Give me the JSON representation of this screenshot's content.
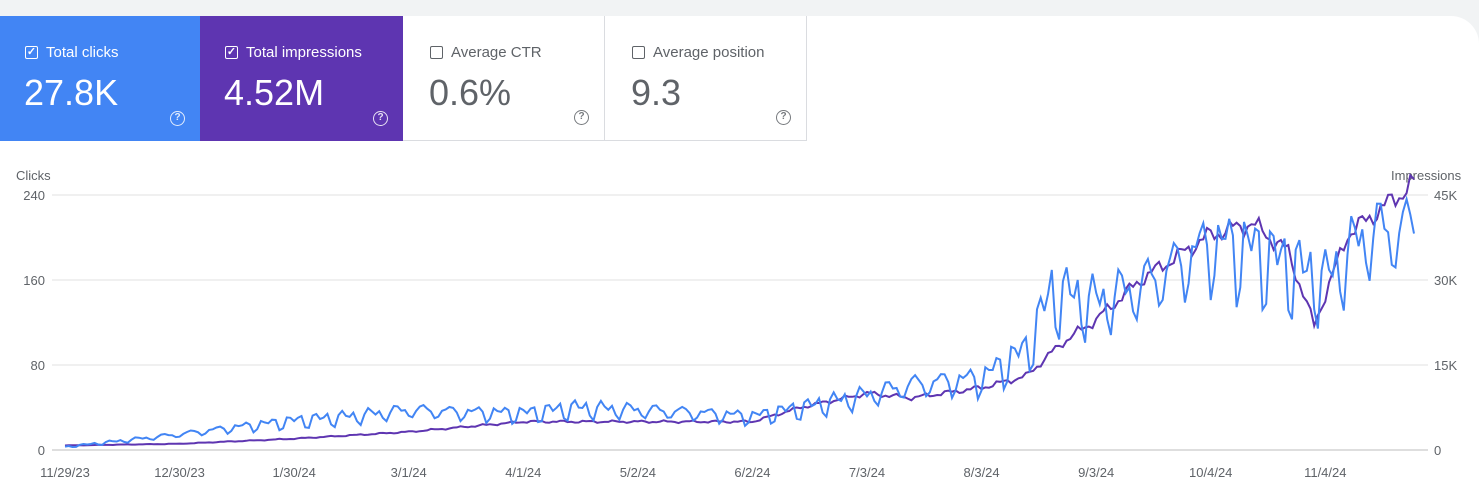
{
  "metrics": {
    "clicks": {
      "label": "Total clicks",
      "value": "27.8K",
      "checked": true
    },
    "impressions": {
      "label": "Total impressions",
      "value": "4.52M",
      "checked": true
    },
    "ctr": {
      "label": "Average CTR",
      "value": "0.6%",
      "checked": false
    },
    "position": {
      "label": "Average position",
      "value": "9.3",
      "checked": false
    },
    "help_glyph": "?",
    "check_glyph": "✓"
  },
  "colors": {
    "clicks": "#4285f4",
    "impressions": "#5e35b1",
    "grid": "#e0e0e0",
    "text": "#5f6368"
  },
  "chart_data": {
    "type": "line",
    "left_axis": {
      "title": "Clicks",
      "ticks": [
        "0",
        "80",
        "160",
        "240"
      ],
      "ylim": [
        0,
        240
      ]
    },
    "right_axis": {
      "title": "Impressions",
      "ticks": [
        "0",
        "15K",
        "30K",
        "45K"
      ],
      "ylim": [
        0,
        45000
      ]
    },
    "x_ticks": [
      "11/29/23",
      "12/30/23",
      "1/30/24",
      "3/1/24",
      "4/1/24",
      "5/2/24",
      "6/2/24",
      "7/3/24",
      "8/3/24",
      "9/3/24",
      "10/4/24",
      "11/4/24"
    ],
    "x_range": [
      "2023-11-29",
      "2024-11-28"
    ],
    "grid": true,
    "series": [
      {
        "name": "Total clicks",
        "axis": "left",
        "values": [
          {
            "date": "2023-11-29",
            "value": 3
          },
          {
            "date": "2023-12-15",
            "value": 9
          },
          {
            "date": "2023-12-30",
            "value": 15
          },
          {
            "date": "2024-01-15",
            "value": 22
          },
          {
            "date": "2024-01-30",
            "value": 28
          },
          {
            "date": "2024-02-15",
            "value": 32
          },
          {
            "date": "2024-03-01",
            "value": 38
          },
          {
            "date": "2024-03-15",
            "value": 36
          },
          {
            "date": "2024-04-01",
            "value": 35
          },
          {
            "date": "2024-04-15",
            "value": 40
          },
          {
            "date": "2024-05-02",
            "value": 38
          },
          {
            "date": "2024-05-15",
            "value": 36
          },
          {
            "date": "2024-06-02",
            "value": 32
          },
          {
            "date": "2024-06-15",
            "value": 40
          },
          {
            "date": "2024-07-03",
            "value": 52
          },
          {
            "date": "2024-07-15",
            "value": 62
          },
          {
            "date": "2024-08-03",
            "value": 68
          },
          {
            "date": "2024-08-15",
            "value": 95
          },
          {
            "date": "2024-08-22",
            "value": 150
          },
          {
            "date": "2024-09-03",
            "value": 140
          },
          {
            "date": "2024-09-15",
            "value": 155
          },
          {
            "date": "2024-10-04",
            "value": 195
          },
          {
            "date": "2024-10-15",
            "value": 190
          },
          {
            "date": "2024-10-25",
            "value": 175
          },
          {
            "date": "2024-11-04",
            "value": 160
          },
          {
            "date": "2024-11-15",
            "value": 205
          },
          {
            "date": "2024-11-28",
            "value": 210
          }
        ]
      },
      {
        "name": "Total impressions",
        "axis": "right",
        "values": [
          {
            "date": "2023-11-29",
            "value": 800
          },
          {
            "date": "2023-12-30",
            "value": 1100
          },
          {
            "date": "2024-01-30",
            "value": 2000
          },
          {
            "date": "2024-03-01",
            "value": 3200
          },
          {
            "date": "2024-04-01",
            "value": 5000
          },
          {
            "date": "2024-05-02",
            "value": 5000
          },
          {
            "date": "2024-06-02",
            "value": 5000
          },
          {
            "date": "2024-06-15",
            "value": 7500
          },
          {
            "date": "2024-07-03",
            "value": 10000
          },
          {
            "date": "2024-07-15",
            "value": 9200
          },
          {
            "date": "2024-08-03",
            "value": 11000
          },
          {
            "date": "2024-08-15",
            "value": 13000
          },
          {
            "date": "2024-08-25",
            "value": 19000
          },
          {
            "date": "2024-09-03",
            "value": 23000
          },
          {
            "date": "2024-09-15",
            "value": 30000
          },
          {
            "date": "2024-10-04",
            "value": 38000
          },
          {
            "date": "2024-10-15",
            "value": 40000
          },
          {
            "date": "2024-10-25",
            "value": 35000
          },
          {
            "date": "2024-11-01",
            "value": 22000
          },
          {
            "date": "2024-11-10",
            "value": 38000
          },
          {
            "date": "2024-11-20",
            "value": 43000
          },
          {
            "date": "2024-11-28",
            "value": 47000
          }
        ]
      }
    ]
  }
}
